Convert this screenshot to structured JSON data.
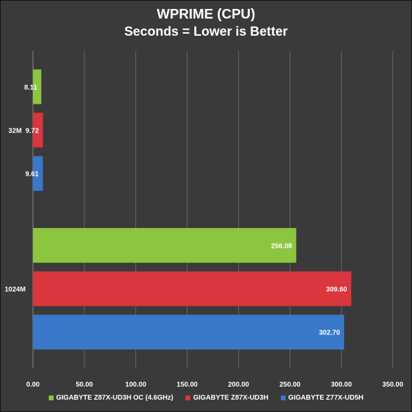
{
  "chart_data": {
    "type": "bar",
    "orientation": "horizontal",
    "title": "WPRIME (CPU)",
    "subtitle": "Seconds = Lower is Better",
    "categories": [
      "32M",
      "1024M"
    ],
    "series": [
      {
        "name": "GIGABYTE Z87X-UD3H OC (4.6GHz)",
        "color": "#8cc63f",
        "values": [
          8.11,
          256.08
        ],
        "labels": [
          "8.11",
          "256.08"
        ]
      },
      {
        "name": "GIGABYTE Z87X-UD3H",
        "color": "#d9363e",
        "values": [
          9.72,
          309.6
        ],
        "labels": [
          "9.72",
          "309.60"
        ]
      },
      {
        "name": "GIGABYTE Z77X-UD5H",
        "color": "#3a78c9",
        "values": [
          9.61,
          302.7
        ],
        "labels": [
          "9.61",
          "302.70"
        ]
      }
    ],
    "xlim": [
      0,
      350
    ],
    "xticks": [
      "0.00",
      "50.00",
      "100.00",
      "150.00",
      "200.00",
      "250.00",
      "300.00",
      "350.00"
    ],
    "grid": true,
    "legend_position": "bottom"
  }
}
